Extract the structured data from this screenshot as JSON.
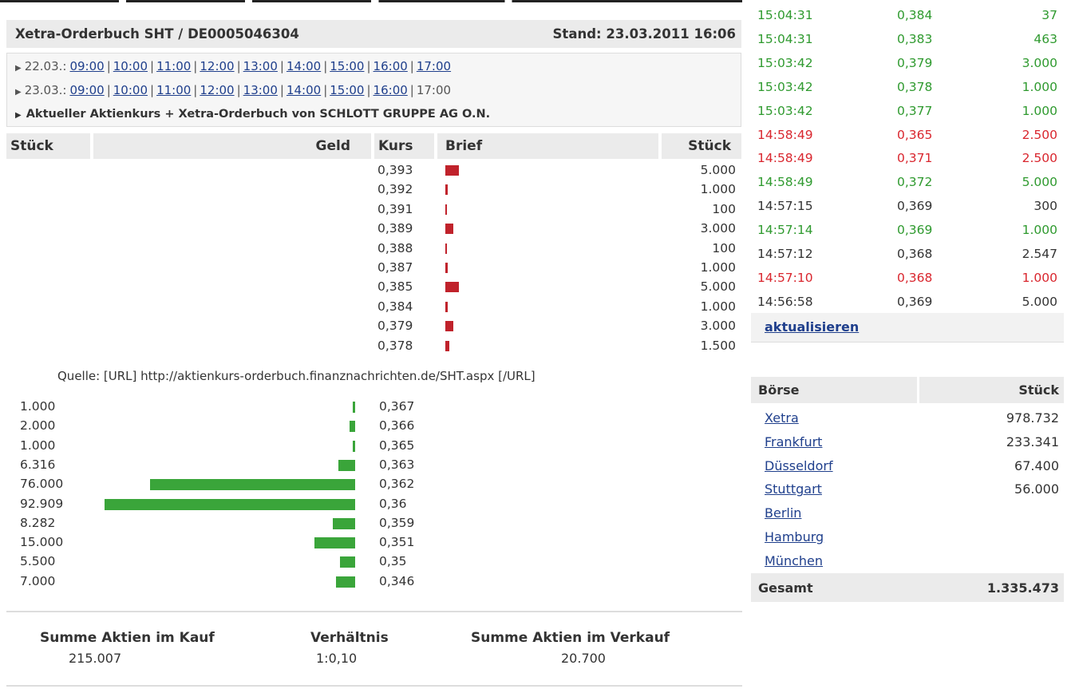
{
  "header": {
    "title": "Xetra-Orderbuch SHT / DE0005046304",
    "stand": "Stand: 23.03.2011 16:06"
  },
  "timenav": {
    "rows": [
      {
        "day": "22.03.:",
        "times": [
          "09:00",
          "10:00",
          "11:00",
          "12:00",
          "13:00",
          "14:00",
          "15:00",
          "16:00",
          "17:00"
        ],
        "linked": 9
      },
      {
        "day": "23.03.:",
        "times": [
          "09:00",
          "10:00",
          "11:00",
          "12:00",
          "13:00",
          "14:00",
          "15:00",
          "16:00",
          "17:00"
        ],
        "linked": 8
      }
    ],
    "current_link": "Aktueller Aktienkurs + Xetra-Orderbuch von SCHLOTT GRUPPE AG O.N."
  },
  "orderbook": {
    "headers": {
      "stueck_left": "Stück",
      "geld": "Geld",
      "kurs": "Kurs",
      "brief": "Brief",
      "stueck_right": "Stück"
    },
    "asks": [
      {
        "kurs": "0,393",
        "stueck": "5.000",
        "qty": 5000
      },
      {
        "kurs": "0,392",
        "stueck": "1.000",
        "qty": 1000
      },
      {
        "kurs": "0,391",
        "stueck": "100",
        "qty": 100
      },
      {
        "kurs": "0,389",
        "stueck": "3.000",
        "qty": 3000
      },
      {
        "kurs": "0,388",
        "stueck": "100",
        "qty": 100
      },
      {
        "kurs": "0,387",
        "stueck": "1.000",
        "qty": 1000
      },
      {
        "kurs": "0,385",
        "stueck": "5.000",
        "qty": 5000
      },
      {
        "kurs": "0,384",
        "stueck": "1.000",
        "qty": 1000
      },
      {
        "kurs": "0,379",
        "stueck": "3.000",
        "qty": 3000
      },
      {
        "kurs": "0,378",
        "stueck": "1.500",
        "qty": 1500
      }
    ],
    "quelle": "Quelle: [URL] http://aktienkurs-orderbuch.finanznachrichten.de/SHT.aspx [/URL]",
    "bids": [
      {
        "stueck": "1.000",
        "kurs": "0,367",
        "qty": 1000
      },
      {
        "stueck": "2.000",
        "kurs": "0,366",
        "qty": 2000
      },
      {
        "stueck": "1.000",
        "kurs": "0,365",
        "qty": 1000
      },
      {
        "stueck": "6.316",
        "kurs": "0,363",
        "qty": 6316
      },
      {
        "stueck": "76.000",
        "kurs": "0,362",
        "qty": 76000
      },
      {
        "stueck": "92.909",
        "kurs": "0,36",
        "qty": 92909
      },
      {
        "stueck": "8.282",
        "kurs": "0,359",
        "qty": 8282
      },
      {
        "stueck": "15.000",
        "kurs": "0,351",
        "qty": 15000
      },
      {
        "stueck": "5.500",
        "kurs": "0,35",
        "qty": 5500
      },
      {
        "stueck": "7.000",
        "kurs": "0,346",
        "qty": 7000
      }
    ]
  },
  "summary": {
    "kauf_label": "Summe Aktien im Kauf",
    "kauf_value": "215.007",
    "verh_label": "Verhältnis",
    "verh_value": "1:0,10",
    "verkauf_label": "Summe Aktien im Verkauf",
    "verkauf_value": "20.700"
  },
  "colors": {
    "green": "#2f9a2f",
    "red": "#d9262e",
    "neutral": "#333333",
    "bid_bar": "#3aa53a",
    "ask_bar": "#c0222b"
  },
  "trades": [
    {
      "time": "15:04:31",
      "price": "0,384",
      "qty": "37",
      "color": "green"
    },
    {
      "time": "15:04:31",
      "price": "0,383",
      "qty": "463",
      "color": "green"
    },
    {
      "time": "15:03:42",
      "price": "0,379",
      "qty": "3.000",
      "color": "green"
    },
    {
      "time": "15:03:42",
      "price": "0,378",
      "qty": "1.000",
      "color": "green"
    },
    {
      "time": "15:03:42",
      "price": "0,377",
      "qty": "1.000",
      "color": "green"
    },
    {
      "time": "14:58:49",
      "price": "0,365",
      "qty": "2.500",
      "color": "red"
    },
    {
      "time": "14:58:49",
      "price": "0,371",
      "qty": "2.500",
      "color": "red"
    },
    {
      "time": "14:58:49",
      "price": "0,372",
      "qty": "5.000",
      "color": "green"
    },
    {
      "time": "14:57:15",
      "price": "0,369",
      "qty": "300",
      "color": "neutral"
    },
    {
      "time": "14:57:14",
      "price": "0,369",
      "qty": "1.000",
      "color": "green"
    },
    {
      "time": "14:57:12",
      "price": "0,368",
      "qty": "2.547",
      "color": "neutral"
    },
    {
      "time": "14:57:10",
      "price": "0,368",
      "qty": "1.000",
      "color": "red"
    },
    {
      "time": "14:56:58",
      "price": "0,369",
      "qty": "5.000",
      "color": "neutral"
    }
  ],
  "refresh_label": "aktualisieren",
  "exchanges": {
    "header_boerse": "Börse",
    "header_stueck": "Stück",
    "rows": [
      {
        "name": "Xetra",
        "stueck": "978.732"
      },
      {
        "name": "Frankfurt",
        "stueck": "233.341"
      },
      {
        "name": "Düsseldorf",
        "stueck": "67.400"
      },
      {
        "name": "Stuttgart",
        "stueck": "56.000"
      },
      {
        "name": "Berlin",
        "stueck": ""
      },
      {
        "name": "Hamburg",
        "stueck": ""
      },
      {
        "name": "München",
        "stueck": ""
      }
    ],
    "total_label": "Gesamt",
    "total_value": "1.335.473"
  }
}
